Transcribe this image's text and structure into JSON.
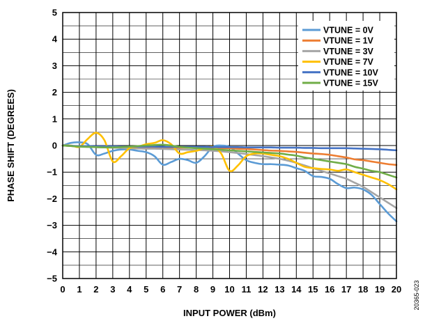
{
  "figure_id": "20365-023",
  "chart_data": {
    "type": "line",
    "title": "",
    "xlabel": "INPUT POWER (dBm)",
    "ylabel": "PHASE SHIFT (DEGREES)",
    "xlim": [
      0,
      20
    ],
    "ylim": [
      -5,
      5
    ],
    "x_ticks": [
      0,
      1,
      2,
      3,
      4,
      5,
      6,
      7,
      8,
      9,
      10,
      11,
      12,
      13,
      14,
      15,
      16,
      17,
      18,
      19,
      20
    ],
    "y_ticks": [
      5,
      4,
      3,
      2,
      1,
      0,
      -1,
      -2,
      -3,
      -4,
      -5
    ],
    "y_tick_labels": [
      "5",
      "4",
      "3",
      "2",
      "1",
      "0",
      "−1",
      "−2",
      "−3",
      "−4",
      "−5"
    ],
    "grid": true,
    "legend": "top-right",
    "x": [
      0,
      0.5,
      1,
      1.5,
      2,
      2.5,
      3,
      3.5,
      4,
      4.5,
      5,
      5.5,
      6,
      6.5,
      7,
      7.5,
      8,
      8.5,
      9,
      9.5,
      10,
      10.5,
      11,
      11.5,
      12,
      12.5,
      13,
      13.5,
      14,
      14.5,
      15,
      15.5,
      16,
      16.5,
      17,
      17.5,
      18,
      18.5,
      19,
      19.5,
      20
    ],
    "series": [
      {
        "name": "VTUNE = 0V",
        "color": "#5B9BD5",
        "values": [
          0,
          0.1,
          0.12,
          0.05,
          -0.35,
          -0.3,
          -0.2,
          -0.15,
          -0.15,
          -0.2,
          -0.25,
          -0.4,
          -0.72,
          -0.62,
          -0.5,
          -0.55,
          -0.65,
          -0.4,
          -0.05,
          0,
          -0.05,
          -0.3,
          -0.55,
          -0.65,
          -0.7,
          -0.7,
          -0.72,
          -0.75,
          -0.85,
          -0.95,
          -1.15,
          -1.18,
          -1.25,
          -1.45,
          -1.6,
          -1.58,
          -1.65,
          -1.85,
          -2.2,
          -2.55,
          -2.85
        ]
      },
      {
        "name": "VTUNE = 1V",
        "color": "#ED7D31",
        "values": [
          0,
          -0.02,
          -0.03,
          -0.04,
          -0.05,
          -0.05,
          -0.05,
          -0.06,
          -0.06,
          -0.06,
          -0.07,
          -0.07,
          -0.07,
          -0.08,
          -0.08,
          -0.08,
          -0.09,
          -0.09,
          -0.1,
          -0.1,
          -0.1,
          -0.12,
          -0.13,
          -0.15,
          -0.17,
          -0.19,
          -0.2,
          -0.22,
          -0.24,
          -0.27,
          -0.3,
          -0.32,
          -0.35,
          -0.4,
          -0.45,
          -0.52,
          -0.55,
          -0.6,
          -0.65,
          -0.7,
          -0.73
        ]
      },
      {
        "name": "VTUNE = 3V",
        "color": "#A5A5A5",
        "values": [
          0,
          -0.02,
          -0.04,
          -0.05,
          -0.06,
          -0.07,
          -0.08,
          -0.09,
          -0.1,
          -0.11,
          -0.12,
          -0.12,
          -0.13,
          -0.14,
          -0.15,
          -0.16,
          -0.17,
          -0.18,
          -0.2,
          -0.22,
          -0.25,
          -0.28,
          -0.32,
          -0.36,
          -0.4,
          -0.45,
          -0.5,
          -0.57,
          -0.65,
          -0.75,
          -0.85,
          -0.95,
          -1.05,
          -1.15,
          -1.25,
          -1.4,
          -1.55,
          -1.75,
          -1.95,
          -2.15,
          -2.35
        ]
      },
      {
        "name": "VTUNE = 7V",
        "color": "#FFC000",
        "values": [
          0,
          0,
          -0.05,
          0.25,
          0.48,
          0.2,
          -0.6,
          -0.4,
          -0.1,
          -0.05,
          0.05,
          0.1,
          0.2,
          0.05,
          -0.3,
          -0.25,
          -0.2,
          -0.1,
          -0.05,
          -0.3,
          -0.95,
          -0.75,
          -0.4,
          -0.3,
          -0.3,
          -0.35,
          -0.4,
          -0.5,
          -0.65,
          -0.8,
          -0.85,
          -0.88,
          -0.9,
          -0.95,
          -0.9,
          -1,
          -1.1,
          -1.2,
          -1.3,
          -1.45,
          -1.65
        ]
      },
      {
        "name": "VTUNE = 10V",
        "color": "#4472C4",
        "values": [
          0,
          -0.01,
          -0.02,
          -0.02,
          -0.03,
          -0.03,
          -0.03,
          -0.04,
          -0.04,
          -0.04,
          -0.04,
          -0.04,
          -0.05,
          -0.05,
          -0.05,
          -0.05,
          -0.05,
          -0.05,
          -0.06,
          -0.06,
          -0.06,
          -0.06,
          -0.07,
          -0.07,
          -0.07,
          -0.07,
          -0.08,
          -0.08,
          -0.08,
          -0.09,
          -0.09,
          -0.1,
          -0.1,
          -0.1,
          -0.1,
          -0.11,
          -0.12,
          -0.13,
          -0.14,
          -0.16,
          -0.18
        ]
      },
      {
        "name": "VTUNE = 15V",
        "color": "#70AD47",
        "values": [
          0,
          -0.02,
          -0.04,
          -0.05,
          -0.06,
          -0.07,
          -0.07,
          -0.06,
          -0.04,
          -0.02,
          0,
          0.02,
          0.03,
          0,
          -0.05,
          -0.08,
          -0.1,
          -0.12,
          -0.14,
          -0.16,
          -0.18,
          -0.2,
          -0.22,
          -0.24,
          -0.26,
          -0.28,
          -0.3,
          -0.34,
          -0.38,
          -0.45,
          -0.5,
          -0.55,
          -0.6,
          -0.65,
          -0.7,
          -0.8,
          -0.87,
          -0.95,
          -1,
          -1.1,
          -1.2
        ]
      }
    ]
  }
}
